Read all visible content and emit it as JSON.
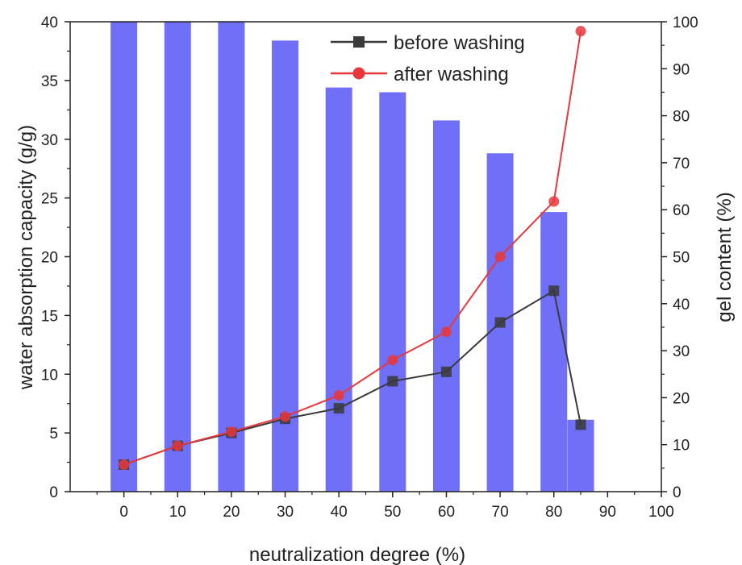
{
  "chart_data": {
    "type": "bar+line",
    "title": "",
    "xlabel": "neutralization degree (%)",
    "ylabel_left": "water absorption capacity (g/g)",
    "ylabel_right": "gel content (%)",
    "xlim": [
      -10,
      100
    ],
    "ylim_left": [
      0,
      40
    ],
    "ylim_right": [
      0,
      100
    ],
    "x_ticks": [
      0,
      10,
      20,
      30,
      40,
      50,
      60,
      70,
      80,
      90,
      100
    ],
    "y_left_ticks": [
      0,
      5,
      10,
      15,
      20,
      25,
      30,
      35,
      40
    ],
    "y_right_ticks": [
      0,
      10,
      20,
      30,
      40,
      50,
      60,
      70,
      80,
      90,
      100
    ],
    "bars": {
      "axis": "right",
      "color": "#6f6ff7",
      "x": [
        0,
        10,
        20,
        30,
        40,
        50,
        60,
        70,
        80,
        85
      ],
      "values": [
        100,
        100,
        100,
        96,
        86,
        85,
        79,
        72,
        59.5,
        15.3
      ]
    },
    "series": [
      {
        "name": "before washing",
        "axis": "left",
        "marker": "square",
        "color": "#3a3a3a",
        "x": [
          0,
          10,
          20,
          30,
          40,
          50,
          60,
          70,
          80,
          85
        ],
        "values": [
          2.3,
          3.9,
          5.0,
          6.2,
          7.1,
          9.4,
          10.2,
          14.4,
          17.1,
          5.7
        ]
      },
      {
        "name": "after washing",
        "axis": "left",
        "marker": "circle",
        "color": "#e8383b",
        "x": [
          0,
          10,
          20,
          30,
          40,
          50,
          60,
          70,
          80,
          85
        ],
        "values": [
          2.3,
          3.9,
          5.1,
          6.4,
          8.2,
          11.2,
          13.6,
          20.0,
          24.7,
          39.2
        ]
      }
    ],
    "legend_position": "top-right",
    "grid": false
  }
}
